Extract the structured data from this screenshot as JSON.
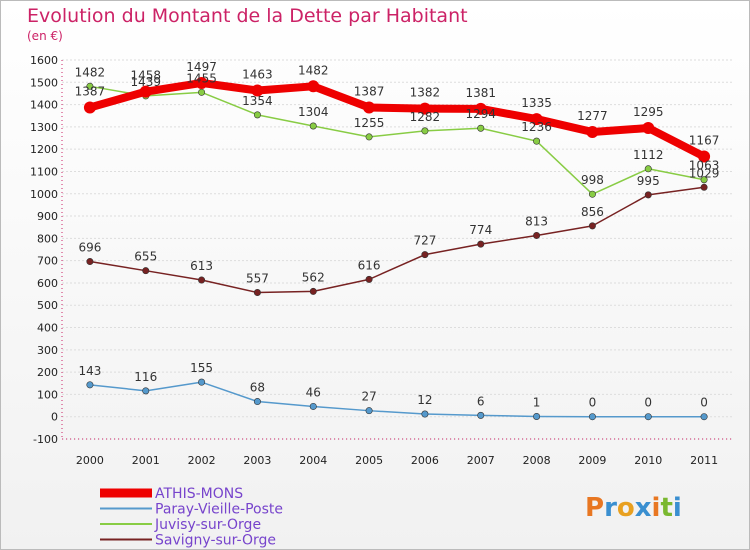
{
  "chart_data": {
    "type": "line",
    "title": "Evolution du Montant de la Dette par Habitant",
    "unit": "(en €)",
    "x": [
      "2000",
      "2001",
      "2002",
      "2003",
      "2004",
      "2005",
      "2006",
      "2007",
      "2008",
      "2009",
      "2010",
      "2011"
    ],
    "ylim": [
      -100,
      1600
    ],
    "yticks": [
      "-100",
      "0",
      "100",
      "200",
      "300",
      "400",
      "500",
      "600",
      "700",
      "800",
      "900",
      "1000",
      "1100",
      "1200",
      "1300",
      "1400",
      "1500",
      "1600"
    ],
    "legend_position": "bottom-left",
    "series": [
      {
        "name": "ATHIS-MONS",
        "color": "#ee0000",
        "values": [
          1387,
          1458,
          1497,
          1463,
          1482,
          1387,
          1382,
          1381,
          1335,
          1277,
          1295,
          1167
        ]
      },
      {
        "name": "Paray-Vieille-Poste",
        "color": "#5599cc",
        "values": [
          143,
          116,
          155,
          68,
          46,
          27,
          12,
          6,
          1,
          0,
          0,
          0
        ]
      },
      {
        "name": "Juvisy-sur-Orge",
        "color": "#88cc44",
        "values": [
          1482,
          1439,
          1455,
          1354,
          1304,
          1255,
          1282,
          1294,
          1236,
          998,
          1112,
          1063
        ]
      },
      {
        "name": "Savigny-sur-Orge",
        "color": "#772222",
        "values": [
          696,
          655,
          613,
          557,
          562,
          616,
          727,
          774,
          813,
          856,
          995,
          1029
        ]
      }
    ]
  },
  "brand": {
    "text": "Proxiti",
    "colors": [
      "#e87722",
      "#3a8fd0",
      "#e8a020",
      "#3a8fd0",
      "#e87722",
      "#7ab830",
      "#3a8fd0"
    ]
  }
}
